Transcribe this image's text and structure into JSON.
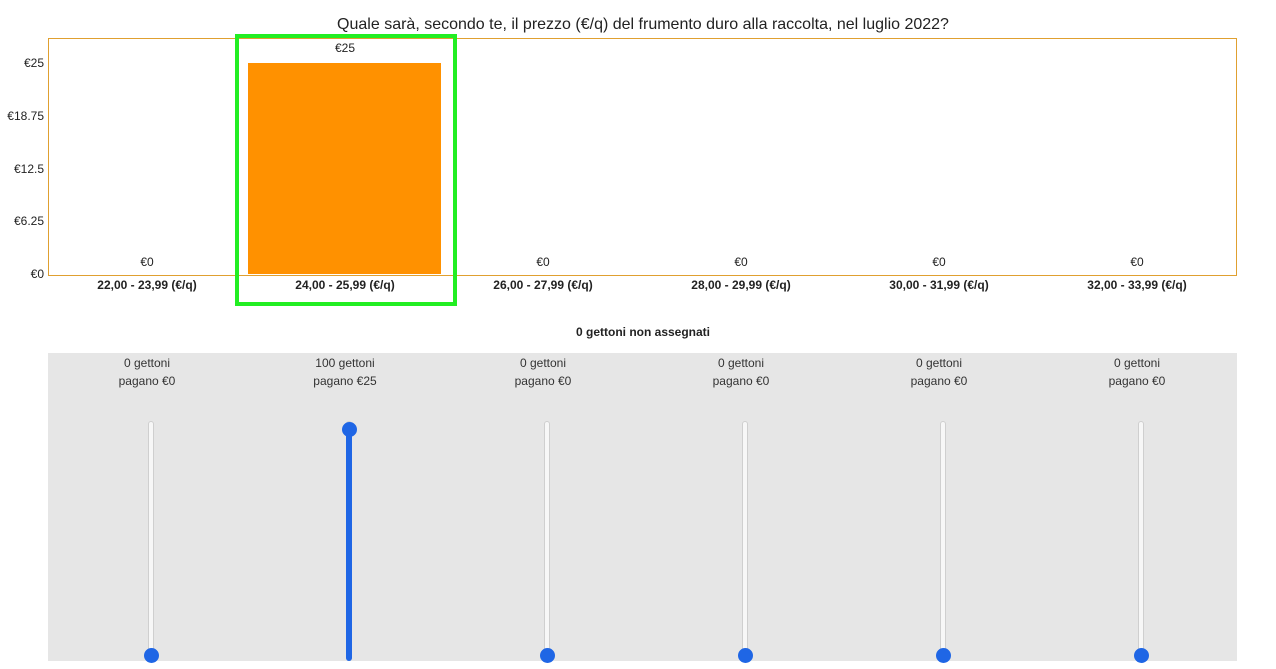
{
  "question": "Quale sarà, secondo te, il prezzo (€/q) del frumento duro alla raccolta, nel luglio 2022?",
  "unassigned_text": "0 gettoni non assegnati",
  "colors": {
    "bar": "#ff9100",
    "frame": "#e0a030",
    "highlight": "#22ee22",
    "slider": "#1f66e5",
    "panel": "#e6e6e6"
  },
  "chart_data": {
    "type": "bar",
    "title": "Quale sarà, secondo te, il prezzo (€/q) del frumento duro alla raccolta, nel luglio 2022?",
    "categories": [
      "22,00 - 23,99 (€/q)",
      "24,00 - 25,99 (€/q)",
      "26,00 - 27,99 (€/q)",
      "28,00 - 29,99 (€/q)",
      "30,00 - 31,99 (€/q)",
      "32,00 - 33,99 (€/q)"
    ],
    "values": [
      0,
      25,
      0,
      0,
      0,
      0
    ],
    "value_labels": [
      "€0",
      "€25",
      "€0",
      "€0",
      "€0",
      "€0"
    ],
    "yticks": [
      "€0",
      "€6.25",
      "€12.5",
      "€18.75",
      "€25"
    ],
    "ytick_values": [
      0,
      6.25,
      12.5,
      18.75,
      25
    ],
    "ylim": [
      0,
      25
    ],
    "highlighted_category": "24,00 - 25,99 (€/q)"
  },
  "sliders": [
    {
      "tokens": "0 gettoni",
      "pays": "pagano €0",
      "value": 0
    },
    {
      "tokens": "100 gettoni",
      "pays": "pagano €25",
      "value": 100
    },
    {
      "tokens": "0 gettoni",
      "pays": "pagano €0",
      "value": 0
    },
    {
      "tokens": "0 gettoni",
      "pays": "pagano €0",
      "value": 0
    },
    {
      "tokens": "0 gettoni",
      "pays": "pagano €0",
      "value": 0
    },
    {
      "tokens": "0 gettoni",
      "pays": "pagano €0",
      "value": 0
    }
  ]
}
